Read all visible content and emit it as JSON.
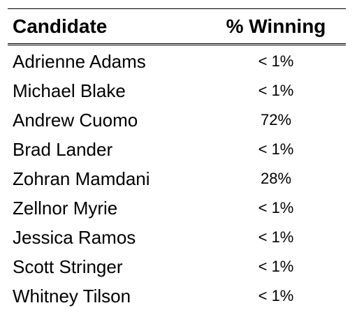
{
  "table": {
    "headers": {
      "candidate": "Candidate",
      "winning": "% Winning"
    },
    "rows": [
      {
        "candidate": "Adrienne Adams",
        "winning": "< 1%"
      },
      {
        "candidate": "Michael Blake",
        "winning": "< 1%"
      },
      {
        "candidate": "Andrew Cuomo",
        "winning": "72%"
      },
      {
        "candidate": "Brad Lander",
        "winning": "< 1%"
      },
      {
        "candidate": "Zohran Mamdani",
        "winning": "28%"
      },
      {
        "candidate": "Zellnor Myrie",
        "winning": "< 1%"
      },
      {
        "candidate": "Jessica Ramos",
        "winning": "< 1%"
      },
      {
        "candidate": "Scott Stringer",
        "winning": "< 1%"
      },
      {
        "candidate": "Whitney Tilson",
        "winning": "< 1%"
      }
    ]
  }
}
